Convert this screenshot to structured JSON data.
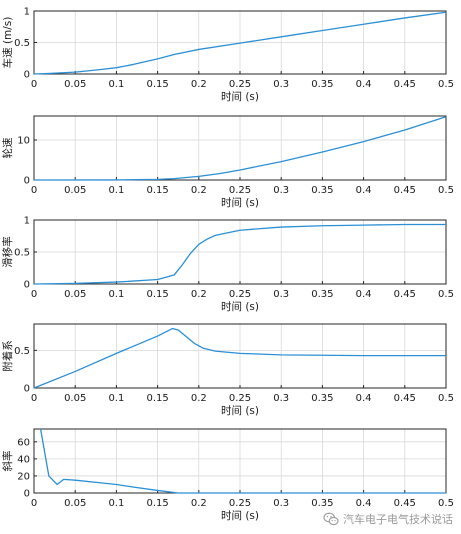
{
  "colors": {
    "line": "#2b8fd6",
    "grid": "#d9d9d9",
    "frame": "#262626"
  },
  "watermark": {
    "text": "汽车电子电气技术说话",
    "icon": "wechat-icon"
  },
  "chart_data": [
    {
      "type": "line",
      "ylabel": "车速 (m/s)",
      "xlabel": "时间 (s)",
      "xlim": [
        0,
        0.5
      ],
      "ylim": [
        0,
        1
      ],
      "xticks": [
        0,
        0.05,
        0.1,
        0.15,
        0.2,
        0.25,
        0.3,
        0.35,
        0.4,
        0.45,
        0.5
      ],
      "yticks": [
        0,
        0.5,
        1
      ],
      "yticklabels": [
        "0",
        "0.5",
        "1"
      ],
      "grid": true,
      "series": [
        {
          "x": [
            0,
            0.02,
            0.05,
            0.08,
            0.1,
            0.12,
            0.15,
            0.17,
            0.2,
            0.25,
            0.3,
            0.35,
            0.4,
            0.45,
            0.5
          ],
          "y": [
            0,
            0.01,
            0.03,
            0.07,
            0.1,
            0.15,
            0.24,
            0.31,
            0.39,
            0.49,
            0.59,
            0.69,
            0.79,
            0.89,
            0.98
          ]
        }
      ]
    },
    {
      "type": "line",
      "ylabel": "轮速",
      "xlabel": "时间 (s)",
      "xlim": [
        0,
        0.5
      ],
      "ylim": [
        0,
        16
      ],
      "xticks": [
        0,
        0.05,
        0.1,
        0.15,
        0.2,
        0.25,
        0.3,
        0.35,
        0.4,
        0.45,
        0.5
      ],
      "yticks": [
        0,
        10
      ],
      "yticklabels": [
        "0",
        "10"
      ],
      "grid": true,
      "series": [
        {
          "x": [
            0,
            0.1,
            0.15,
            0.17,
            0.2,
            0.225,
            0.25,
            0.3,
            0.35,
            0.4,
            0.45,
            0.5
          ],
          "y": [
            0,
            0.02,
            0.15,
            0.35,
            0.9,
            1.6,
            2.5,
            4.6,
            7.0,
            9.6,
            12.5,
            15.8
          ]
        }
      ]
    },
    {
      "type": "line",
      "ylabel": "滑移率",
      "xlabel": "时间 (s)",
      "xlim": [
        0,
        0.5
      ],
      "ylim": [
        0,
        1
      ],
      "xticks": [
        0,
        0.05,
        0.1,
        0.15,
        0.2,
        0.25,
        0.3,
        0.35,
        0.4,
        0.45,
        0.5
      ],
      "yticks": [
        0,
        0.5,
        1
      ],
      "yticklabels": [
        "0",
        "0.5",
        "1"
      ],
      "grid": true,
      "series": [
        {
          "x": [
            0,
            0.05,
            0.1,
            0.15,
            0.17,
            0.18,
            0.19,
            0.2,
            0.21,
            0.22,
            0.25,
            0.3,
            0.35,
            0.4,
            0.45,
            0.5
          ],
          "y": [
            0,
            0.01,
            0.03,
            0.07,
            0.14,
            0.3,
            0.48,
            0.62,
            0.7,
            0.76,
            0.84,
            0.89,
            0.91,
            0.92,
            0.93,
            0.93
          ]
        }
      ]
    },
    {
      "type": "line",
      "ylabel": "附着系",
      "xlabel": "时间 (s)",
      "xlim": [
        0,
        0.5
      ],
      "ylim": [
        0,
        0.85
      ],
      "xticks": [
        0,
        0.05,
        0.1,
        0.15,
        0.2,
        0.25,
        0.3,
        0.35,
        0.4,
        0.45,
        0.5
      ],
      "yticks": [
        0,
        0.5
      ],
      "yticklabels": [
        "0",
        "0.5"
      ],
      "grid": true,
      "series": [
        {
          "x": [
            0,
            0.05,
            0.1,
            0.15,
            0.168,
            0.175,
            0.185,
            0.195,
            0.205,
            0.22,
            0.25,
            0.3,
            0.35,
            0.4,
            0.45,
            0.5
          ],
          "y": [
            0,
            0.22,
            0.46,
            0.69,
            0.79,
            0.77,
            0.68,
            0.59,
            0.53,
            0.49,
            0.46,
            0.44,
            0.435,
            0.43,
            0.43,
            0.43
          ]
        }
      ]
    },
    {
      "type": "line",
      "ylabel": "斜率",
      "xlabel": "时间 (s)",
      "xlim": [
        0,
        0.5
      ],
      "ylim": [
        0,
        75
      ],
      "xticks": [
        0,
        0.05,
        0.1,
        0.15,
        0.2,
        0.25,
        0.3,
        0.35,
        0.4,
        0.45,
        0.5
      ],
      "yticks": [
        0,
        20,
        40,
        60
      ],
      "yticklabels": [
        "0",
        "20",
        "40",
        "60"
      ],
      "grid": true,
      "series": [
        {
          "x": [
            0.008,
            0.018,
            0.028,
            0.036,
            0.05,
            0.08,
            0.1,
            0.12,
            0.15,
            0.175,
            0.2,
            0.3,
            0.4,
            0.5
          ],
          "y": [
            75,
            20,
            10,
            16,
            15,
            12,
            10,
            7,
            3,
            0,
            0,
            0,
            0,
            0
          ]
        }
      ]
    }
  ]
}
